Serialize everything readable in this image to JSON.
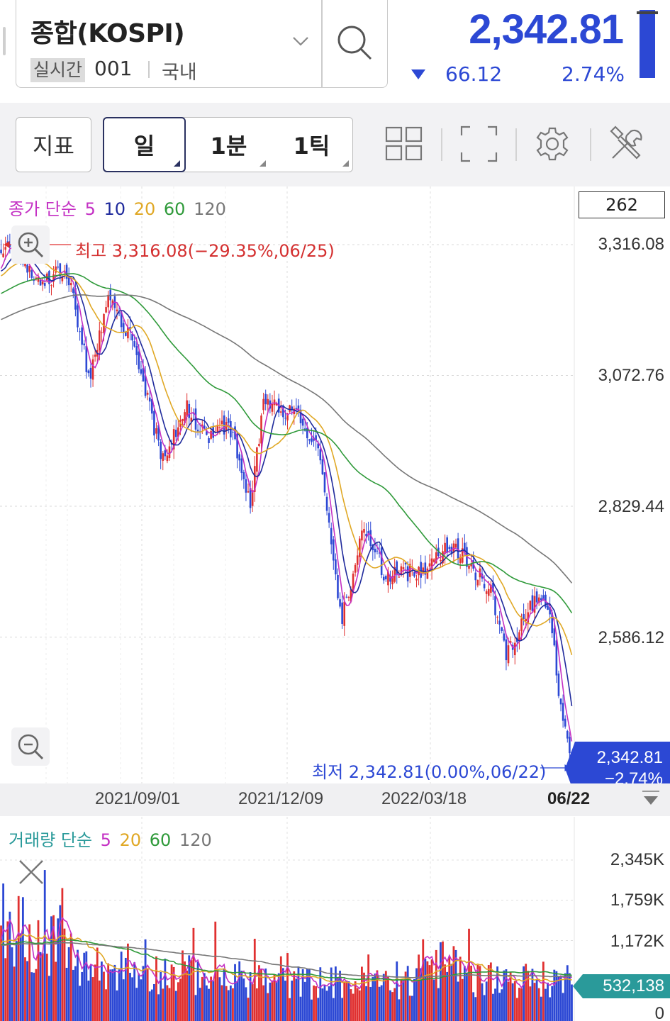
{
  "header": {
    "symbol_name": "종합(KOSPI)",
    "realtime_tag": "실시간",
    "symbol_code": "001",
    "market": "국내",
    "price": "2,342.81",
    "change_abs": "66.12",
    "change_pct": "2.74%",
    "direction": "down",
    "down_color": "#2c48d4"
  },
  "toolbar": {
    "indicator_label": "지표",
    "periods": [
      {
        "label": "일",
        "active": true
      },
      {
        "label": "1분",
        "active": false
      },
      {
        "label": "1틱",
        "active": false
      }
    ],
    "icons": [
      "layout-grid-icon",
      "fullscreen-icon",
      "settings-gear-icon",
      "tools-icon"
    ]
  },
  "price_panel": {
    "legend": {
      "prefix": "종가 단순",
      "periods": [
        {
          "label": "5",
          "color": "#c431c4"
        },
        {
          "label": "10",
          "color": "#1f2a9c"
        },
        {
          "label": "20",
          "color": "#e0a825"
        },
        {
          "label": "60",
          "color": "#2f9a3a"
        },
        {
          "label": "120",
          "color": "#777777"
        }
      ]
    },
    "bar_count": "262",
    "y_labels": [
      "3,316.08",
      "3,072.76",
      "2,829.44",
      "2,586.12"
    ],
    "high_label": "최고 3,316.08(−29.35%,06/25)",
    "low_label": "최저 2,342.81(0.00%,06/22)",
    "current_price": "2,342.81",
    "current_change": "−2.74%",
    "up_color": "#e03030",
    "down_color": "#2c48d4"
  },
  "x_axis": {
    "labels": [
      "2021/09/01",
      "2021/12/09",
      "2022/03/18"
    ],
    "last_label": "06/22"
  },
  "volume_panel": {
    "legend": {
      "prefix": "거래량 단순",
      "periods": [
        {
          "label": "5",
          "color": "#c431c4"
        },
        {
          "label": "20",
          "color": "#e0a825"
        },
        {
          "label": "60",
          "color": "#2f9a3a"
        },
        {
          "label": "120",
          "color": "#777777"
        }
      ]
    },
    "y_labels": [
      "2,345K",
      "1,759K",
      "1,172K",
      "0"
    ],
    "current_volume": "532,138",
    "tag_color": "#2a9a9a"
  },
  "chart_data": {
    "type": "candlestick",
    "y_range": [
      2342.81,
      3316.08
    ],
    "x_first": "2021/06/25",
    "x_last": "2022/06/22",
    "sessions": 262,
    "close_anchors": [
      {
        "date": "2021/06/25",
        "close": 3302
      },
      {
        "date": "2021/07/06",
        "close": 3305
      },
      {
        "date": "2021/07/20",
        "close": 3245
      },
      {
        "date": "2021/08/06",
        "close": 3270
      },
      {
        "date": "2021/08/20",
        "close": 3065
      },
      {
        "date": "2021/09/01",
        "close": 3210
      },
      {
        "date": "2021/09/15",
        "close": 3150
      },
      {
        "date": "2021/10/06",
        "close": 2910
      },
      {
        "date": "2021/10/20",
        "close": 3013
      },
      {
        "date": "2021/11/03",
        "close": 2960
      },
      {
        "date": "2021/11/17",
        "close": 2980
      },
      {
        "date": "2021/11/30",
        "close": 2840
      },
      {
        "date": "2021/12/09",
        "close": 3030
      },
      {
        "date": "2021/12/31",
        "close": 2990
      },
      {
        "date": "2022/01/14",
        "close": 2920
      },
      {
        "date": "2022/01/27",
        "close": 2615
      },
      {
        "date": "2022/02/10",
        "close": 2790
      },
      {
        "date": "2022/02/24",
        "close": 2700
      },
      {
        "date": "2022/03/18",
        "close": 2710
      },
      {
        "date": "2022/04/05",
        "close": 2760
      },
      {
        "date": "2022/04/19",
        "close": 2720
      },
      {
        "date": "2022/05/02",
        "close": 2670
      },
      {
        "date": "2022/05/12",
        "close": 2550
      },
      {
        "date": "2022/05/25",
        "close": 2640
      },
      {
        "date": "2022/06/03",
        "close": 2670
      },
      {
        "date": "2022/06/10",
        "close": 2595
      },
      {
        "date": "2022/06/15",
        "close": 2450
      },
      {
        "date": "2022/06/22",
        "close": 2342.81
      }
    ],
    "ma_periods": [
      5,
      10,
      20,
      60,
      120
    ],
    "volume_range": [
      0,
      2345000
    ],
    "volume_current": 532138
  }
}
